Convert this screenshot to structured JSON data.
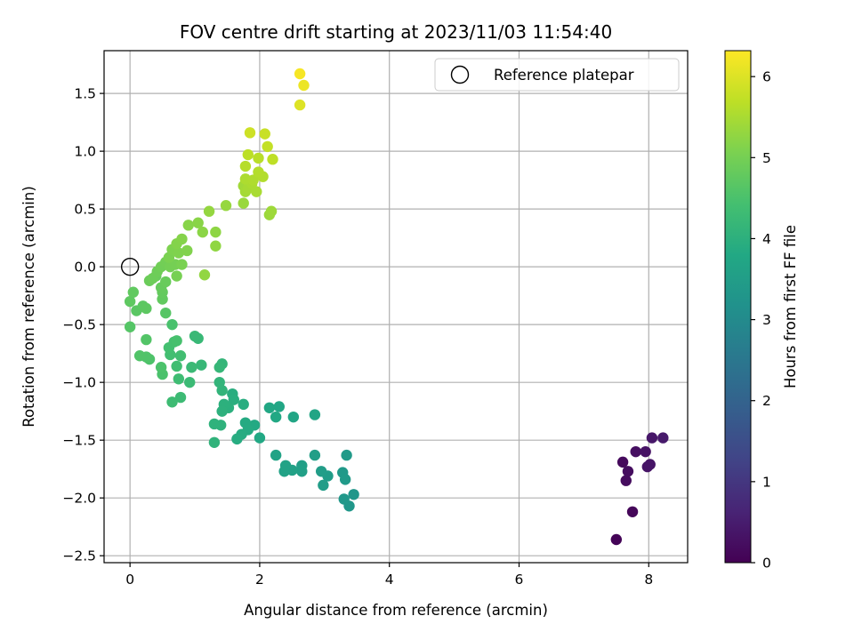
{
  "chart_data": {
    "type": "scatter",
    "title": "FOV centre drift starting at 2023/11/03 11:54:40",
    "xlabel": "Angular distance from reference (arcmin)",
    "ylabel": "Rotation from reference (arcmin)",
    "xlim": [
      -0.4,
      8.6
    ],
    "ylim": [
      -2.56,
      1.87
    ],
    "xticks": [
      0,
      2,
      4,
      6,
      8
    ],
    "xtick_labels": [
      "0",
      "2",
      "4",
      "6",
      "8"
    ],
    "yticks": [
      -2.5,
      -2.0,
      -1.5,
      -1.0,
      -0.5,
      0.0,
      0.5,
      1.0,
      1.5
    ],
    "ytick_labels": [
      "−2.5",
      "−2.0",
      "−1.5",
      "−1.0",
      "−0.5",
      "0.0",
      "0.5",
      "1.0",
      "1.5"
    ],
    "grid": true,
    "legend": {
      "position": "upper right",
      "entries": [
        "Reference platepar"
      ]
    },
    "colorbar": {
      "label": "Hours from first FF file",
      "colormap": "viridis",
      "range": [
        0,
        6.32
      ],
      "ticks": [
        0,
        1,
        2,
        3,
        4,
        5,
        6
      ],
      "tick_labels": [
        "0",
        "1",
        "2",
        "3",
        "4",
        "5",
        "6"
      ]
    },
    "reference": {
      "name": "Reference platepar",
      "x": 0.0,
      "y": 0.0
    },
    "series": [
      {
        "points": [
          [
            7.5,
            -2.36,
            0.05
          ],
          [
            7.75,
            -2.12,
            0.1
          ],
          [
            7.6,
            -1.69,
            0.15
          ],
          [
            7.65,
            -1.85,
            0.2
          ],
          [
            7.68,
            -1.77,
            0.22
          ],
          [
            7.8,
            -1.6,
            0.25
          ],
          [
            7.95,
            -1.6,
            0.3
          ],
          [
            7.98,
            -1.73,
            0.32
          ],
          [
            8.02,
            -1.71,
            0.35
          ],
          [
            8.05,
            -1.48,
            0.4
          ],
          [
            8.22,
            -1.48,
            0.45
          ],
          [
            3.45,
            -1.97,
            3.3
          ],
          [
            3.38,
            -2.07,
            3.32
          ],
          [
            3.3,
            -2.01,
            3.35
          ],
          [
            3.28,
            -1.78,
            3.38
          ],
          [
            3.32,
            -1.84,
            3.4
          ],
          [
            3.34,
            -1.63,
            3.42
          ],
          [
            3.05,
            -1.81,
            3.45
          ],
          [
            2.95,
            -1.77,
            3.48
          ],
          [
            2.98,
            -1.89,
            3.5
          ],
          [
            2.85,
            -1.63,
            3.52
          ],
          [
            2.65,
            -1.72,
            3.55
          ],
          [
            2.65,
            -1.77,
            3.58
          ],
          [
            2.5,
            -1.76,
            3.6
          ],
          [
            2.4,
            -1.72,
            3.62
          ],
          [
            2.38,
            -1.77,
            3.64
          ],
          [
            2.25,
            -1.63,
            3.66
          ],
          [
            2.85,
            -1.28,
            3.7
          ],
          [
            2.52,
            -1.3,
            3.72
          ],
          [
            2.3,
            -1.21,
            3.74
          ],
          [
            2.15,
            -1.22,
            3.76
          ],
          [
            2.25,
            -1.3,
            3.78
          ],
          [
            2.0,
            -1.48,
            3.8
          ],
          [
            1.92,
            -1.37,
            3.82
          ],
          [
            1.78,
            -1.35,
            3.84
          ],
          [
            1.82,
            -1.41,
            3.86
          ],
          [
            1.72,
            -1.45,
            3.88
          ],
          [
            1.65,
            -1.49,
            3.9
          ],
          [
            1.75,
            -1.19,
            3.92
          ],
          [
            1.58,
            -1.1,
            3.94
          ],
          [
            1.6,
            -1.15,
            3.96
          ],
          [
            1.52,
            -1.22,
            3.98
          ],
          [
            1.45,
            -1.19,
            4.0
          ],
          [
            1.42,
            -1.25,
            4.02
          ],
          [
            1.4,
            -1.37,
            4.04
          ],
          [
            1.3,
            -1.36,
            4.06
          ],
          [
            1.3,
            -1.52,
            4.08
          ],
          [
            1.42,
            -1.07,
            4.1
          ],
          [
            1.38,
            -1.0,
            4.12
          ],
          [
            1.42,
            -0.84,
            4.15
          ],
          [
            1.38,
            -0.87,
            4.18
          ],
          [
            1.1,
            -0.85,
            4.2
          ],
          [
            1.05,
            -0.62,
            4.22
          ],
          [
            1.0,
            -0.6,
            4.24
          ],
          [
            0.95,
            -0.87,
            4.26
          ],
          [
            0.92,
            -1.0,
            4.28
          ],
          [
            0.78,
            -1.13,
            4.3
          ],
          [
            0.65,
            -1.17,
            4.32
          ],
          [
            0.75,
            -0.97,
            4.34
          ],
          [
            0.72,
            -0.86,
            4.36
          ],
          [
            0.78,
            -0.77,
            4.38
          ],
          [
            0.62,
            -0.76,
            4.4
          ],
          [
            0.6,
            -0.7,
            4.42
          ],
          [
            0.68,
            -0.65,
            4.44
          ],
          [
            0.72,
            -0.64,
            4.46
          ],
          [
            0.65,
            -0.5,
            4.48
          ],
          [
            0.5,
            -0.93,
            4.5
          ],
          [
            0.48,
            -0.87,
            4.52
          ],
          [
            0.3,
            -0.8,
            4.54
          ],
          [
            0.25,
            -0.78,
            4.56
          ],
          [
            0.15,
            -0.77,
            4.58
          ],
          [
            0.25,
            -0.63,
            4.6
          ],
          [
            0.0,
            -0.52,
            4.62
          ],
          [
            0.55,
            -0.4,
            4.65
          ],
          [
            0.1,
            -0.38,
            4.68
          ],
          [
            0.2,
            -0.34,
            4.7
          ],
          [
            0.25,
            -0.36,
            4.72
          ],
          [
            0.0,
            -0.3,
            4.74
          ],
          [
            0.05,
            -0.22,
            4.76
          ],
          [
            0.5,
            -0.28,
            4.78
          ],
          [
            0.5,
            -0.22,
            4.8
          ],
          [
            0.48,
            -0.18,
            4.82
          ],
          [
            0.55,
            -0.13,
            4.84
          ],
          [
            0.4,
            -0.08,
            4.86
          ],
          [
            0.3,
            -0.12,
            4.88
          ],
          [
            0.35,
            -0.1,
            4.9
          ],
          [
            0.42,
            -0.04,
            4.92
          ],
          [
            0.48,
            0.0,
            4.94
          ],
          [
            0.55,
            0.04,
            4.96
          ],
          [
            0.62,
            0.0,
            4.98
          ],
          [
            0.7,
            0.02,
            5.0
          ],
          [
            0.72,
            -0.08,
            5.02
          ],
          [
            0.8,
            0.02,
            5.04
          ],
          [
            0.6,
            0.08,
            5.06
          ],
          [
            0.65,
            0.15,
            5.08
          ],
          [
            0.75,
            0.12,
            5.1
          ],
          [
            0.88,
            0.14,
            5.12
          ],
          [
            0.72,
            0.2,
            5.14
          ],
          [
            0.8,
            0.24,
            5.16
          ],
          [
            0.9,
            0.36,
            5.18
          ],
          [
            1.05,
            0.38,
            5.2
          ],
          [
            1.12,
            0.3,
            5.22
          ],
          [
            1.32,
            0.3,
            5.24
          ],
          [
            1.32,
            0.18,
            5.26
          ],
          [
            1.15,
            -0.07,
            5.28
          ],
          [
            1.22,
            0.48,
            5.3
          ],
          [
            1.48,
            0.53,
            5.32
          ],
          [
            1.75,
            0.55,
            5.35
          ],
          [
            2.15,
            0.45,
            5.38
          ],
          [
            2.18,
            0.48,
            5.4
          ],
          [
            1.75,
            0.7,
            5.42
          ],
          [
            1.78,
            0.65,
            5.45
          ],
          [
            1.82,
            0.68,
            5.48
          ],
          [
            1.95,
            0.65,
            5.5
          ],
          [
            1.88,
            0.72,
            5.52
          ],
          [
            1.78,
            0.76,
            5.54
          ],
          [
            1.9,
            0.75,
            5.56
          ],
          [
            2.05,
            0.78,
            5.58
          ],
          [
            1.98,
            0.82,
            5.6
          ],
          [
            1.78,
            0.87,
            5.62
          ],
          [
            1.98,
            0.94,
            5.65
          ],
          [
            1.82,
            0.97,
            5.68
          ],
          [
            2.2,
            0.93,
            5.7
          ],
          [
            2.12,
            1.04,
            5.75
          ],
          [
            2.08,
            1.15,
            5.8
          ],
          [
            1.85,
            1.16,
            5.85
          ],
          [
            2.62,
            1.4,
            6.0
          ],
          [
            2.68,
            1.57,
            6.15
          ],
          [
            2.62,
            1.67,
            6.25
          ]
        ]
      }
    ]
  }
}
